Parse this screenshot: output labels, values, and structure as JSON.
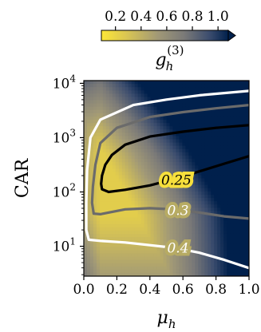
{
  "chart_data": {
    "type": "heatmap",
    "title": "",
    "colorbar": {
      "label_main": "g",
      "label_sub": "h",
      "label_sup": "(3)",
      "ticks": [
        "0.2",
        "0.4",
        "0.6",
        "0.8",
        "1.0"
      ],
      "tick_values": [
        0.2,
        0.4,
        0.6,
        0.8,
        1.0
      ],
      "range": [
        0.09,
        1.08
      ],
      "colormap": "cividis_r",
      "extend": "max"
    },
    "xlabel_main": "μ",
    "xlabel_sub": "h",
    "ylabel": "CAR",
    "xlim": [
      0.0,
      1.0
    ],
    "ylim_log10": [
      0.45,
      4.05
    ],
    "yscale": "log",
    "xticks": [
      "0.0",
      "0.2",
      "0.4",
      "0.6",
      "0.8",
      "1.0"
    ],
    "xtick_values": [
      0.0,
      0.2,
      0.4,
      0.6,
      0.8,
      1.0
    ],
    "yticks": [
      {
        "base": "10",
        "exp": "1",
        "log10": 1
      },
      {
        "base": "10",
        "exp": "2",
        "log10": 2
      },
      {
        "base": "10",
        "exp": "3",
        "log10": 3
      },
      {
        "base": "10",
        "exp": "4",
        "log10": 4
      }
    ],
    "contours": [
      {
        "level": 0.25,
        "label": "0.25",
        "color": "#000000",
        "points": [
          [
            1.0,
            2.66
          ],
          [
            0.85,
            2.52
          ],
          [
            0.7,
            2.38
          ],
          [
            0.55,
            2.24
          ],
          [
            0.4,
            2.12
          ],
          [
            0.25,
            2.04
          ],
          [
            0.15,
            2.0
          ],
          [
            0.11,
            2.05
          ],
          [
            0.105,
            2.15
          ],
          [
            0.11,
            2.3
          ],
          [
            0.13,
            2.5
          ],
          [
            0.17,
            2.68
          ],
          [
            0.25,
            2.87
          ],
          [
            0.4,
            3.02
          ],
          [
            0.6,
            3.11
          ],
          [
            0.8,
            3.18
          ],
          [
            1.0,
            3.23
          ]
        ],
        "label_at": [
          0.56,
          2.22
        ]
      },
      {
        "level": 0.3,
        "label": "0.3",
        "color": "#6b6b6b",
        "points": [
          [
            1.0,
            1.51
          ],
          [
            0.85,
            1.55
          ],
          [
            0.7,
            1.62
          ],
          [
            0.55,
            1.68
          ],
          [
            0.4,
            1.7
          ],
          [
            0.25,
            1.68
          ],
          [
            0.1,
            1.59
          ],
          [
            0.06,
            1.6
          ],
          [
            0.05,
            1.8
          ],
          [
            0.055,
            2.1
          ],
          [
            0.07,
            2.5
          ],
          [
            0.1,
            2.9
          ],
          [
            0.2,
            3.18
          ],
          [
            0.4,
            3.38
          ],
          [
            0.6,
            3.47
          ],
          [
            0.8,
            3.54
          ],
          [
            1.0,
            3.6
          ]
        ],
        "label_at": [
          0.57,
          1.66
        ]
      },
      {
        "level": 0.4,
        "label": "0.4",
        "color": "#ffffff",
        "points": [
          [
            1.0,
            0.6
          ],
          [
            0.85,
            0.75
          ],
          [
            0.7,
            0.88
          ],
          [
            0.55,
            0.97
          ],
          [
            0.4,
            1.02
          ],
          [
            0.25,
            1.07
          ],
          [
            0.1,
            1.1
          ],
          [
            0.03,
            1.12
          ],
          [
            0.015,
            1.3
          ],
          [
            0.015,
            1.8
          ],
          [
            0.02,
            2.4
          ],
          [
            0.04,
            3.0
          ],
          [
            0.1,
            3.33
          ],
          [
            0.3,
            3.6
          ],
          [
            0.5,
            3.7
          ],
          [
            0.7,
            3.78
          ],
          [
            1.0,
            3.86
          ]
        ],
        "label_at": [
          0.57,
          0.97
        ]
      }
    ]
  }
}
